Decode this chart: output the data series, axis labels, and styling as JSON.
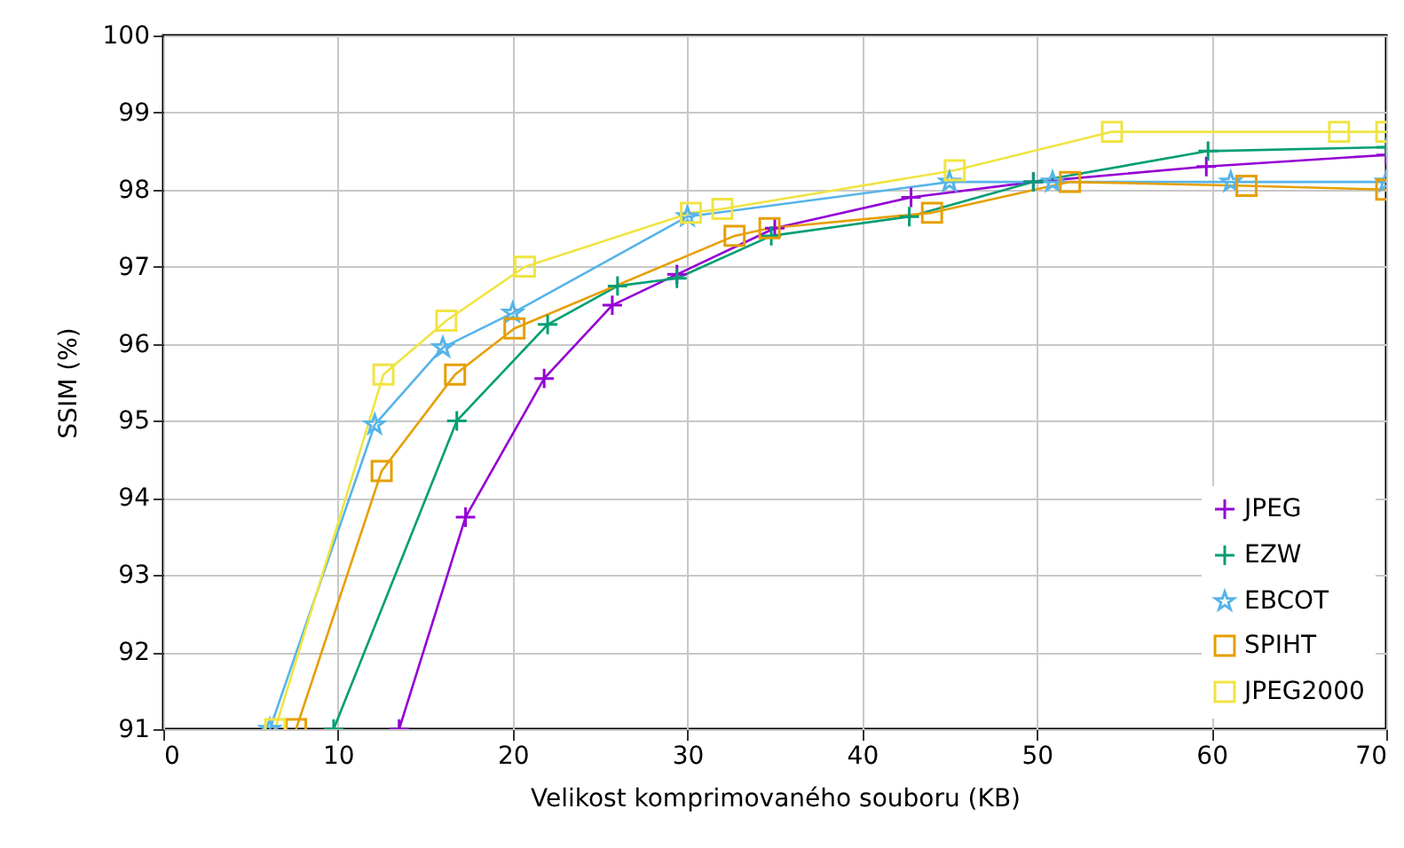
{
  "chart_data": {
    "type": "line",
    "xlabel": "Velikost komprimovaného souboru (KB)",
    "ylabel": "SSIM (%)",
    "xlim": [
      0,
      70
    ],
    "xticks": [
      0,
      10,
      20,
      30,
      40,
      50,
      60,
      70
    ],
    "ylim": [
      91,
      100
    ],
    "yticks": [
      91,
      92,
      93,
      94,
      95,
      96,
      97,
      98,
      99,
      100
    ],
    "grid": true,
    "legend": "bottom right",
    "line_style": "solid",
    "series": [
      {
        "name": "JPEG",
        "color": "#9400d3",
        "marker": "cross",
        "x": [
          13.5,
          17.3,
          21.8,
          25.7,
          29.4,
          35.0,
          42.8,
          49.8,
          59.7,
          70
        ],
        "values": [
          91,
          93.75,
          95.55,
          96.5,
          96.9,
          97.5,
          97.9,
          98.1,
          98.3,
          98.45
        ]
      },
      {
        "name": "EZW",
        "color": "#009e73",
        "marker": "cross",
        "x": [
          9.75,
          16.8,
          22.0,
          26.0,
          29.4,
          34.8,
          42.7,
          49.8,
          59.8,
          70
        ],
        "values": [
          91,
          95.0,
          96.25,
          96.75,
          96.85,
          97.4,
          97.65,
          98.1,
          98.5,
          98.55
        ]
      },
      {
        "name": "EBCOT",
        "color": "#56b4e9",
        "marker": "star",
        "x": [
          6.1,
          12.1,
          16.0,
          20.0,
          30.0,
          45.0,
          50.9,
          61.1,
          70
        ],
        "values": [
          91,
          94.95,
          95.95,
          96.4,
          97.65,
          98.1,
          98.1,
          98.1,
          98.1
        ]
      },
      {
        "name": "SPIHT",
        "color": "#e69f00",
        "marker": "square",
        "x": [
          7.6,
          12.5,
          16.7,
          20.1,
          32.7,
          34.7,
          44.0,
          51.9,
          62.0,
          70
        ],
        "values": [
          91,
          94.35,
          95.6,
          96.2,
          97.4,
          97.5,
          97.7,
          98.1,
          98.05,
          98.0
        ]
      },
      {
        "name": "JPEG2000",
        "color": "#f0e442",
        "marker": "square",
        "x": [
          6.4,
          12.6,
          16.2,
          20.7,
          30.2,
          32.0,
          45.3,
          54.3,
          67.3,
          70
        ],
        "values": [
          91,
          95.6,
          96.3,
          97.0,
          97.7,
          97.75,
          98.25,
          98.75,
          98.75,
          98.75
        ]
      }
    ]
  }
}
